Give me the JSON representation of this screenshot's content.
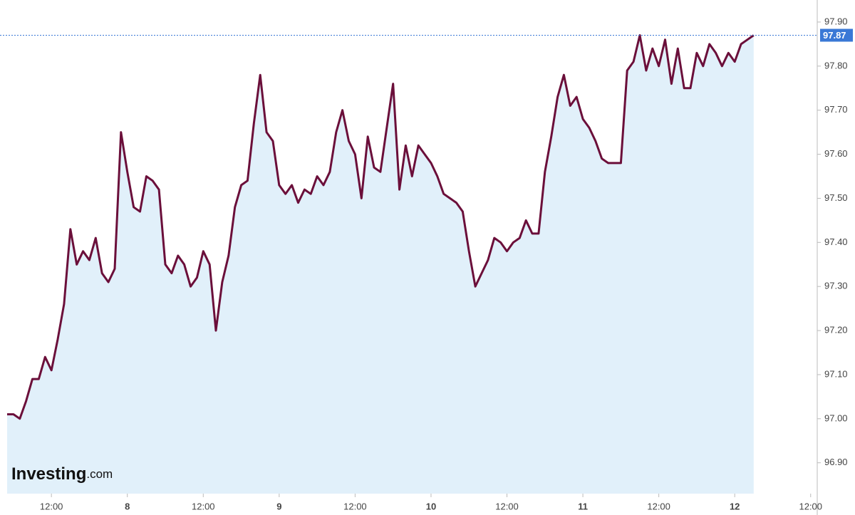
{
  "chart_data": {
    "type": "area",
    "categories": [
      null,
      null,
      null,
      null,
      null,
      null,
      null,
      "12:00",
      null,
      null,
      null,
      null,
      null,
      null,
      null,
      null,
      null,
      null,
      null,
      "8",
      null,
      null,
      null,
      null,
      null,
      null,
      null,
      null,
      null,
      null,
      null,
      "12:00",
      null,
      null,
      null,
      null,
      null,
      null,
      null,
      null,
      null,
      null,
      null,
      "9",
      null,
      null,
      null,
      null,
      null,
      null,
      null,
      null,
      null,
      null,
      null,
      "12:00",
      null,
      null,
      null,
      null,
      null,
      null,
      null,
      null,
      null,
      null,
      null,
      "10",
      null,
      null,
      null,
      null,
      null,
      null,
      null,
      null,
      null,
      null,
      null,
      "12:00",
      null,
      null,
      null,
      null,
      null,
      null,
      null,
      null,
      null,
      null,
      null,
      "11",
      null,
      null,
      null,
      null,
      null,
      null,
      null,
      null,
      null,
      null,
      null,
      "12:00",
      null,
      null,
      null,
      null,
      null,
      null,
      null,
      null,
      null,
      null,
      null,
      "12",
      null,
      null,
      null,
      null,
      null,
      null,
      null,
      null,
      null,
      null,
      null,
      "12:00"
    ],
    "values": [
      97.01,
      97.01,
      97.0,
      97.04,
      97.09,
      97.09,
      97.14,
      97.11,
      97.18,
      97.26,
      97.43,
      97.35,
      97.38,
      97.36,
      97.41,
      97.33,
      97.31,
      97.34,
      97.65,
      97.56,
      97.48,
      97.47,
      97.55,
      97.54,
      97.52,
      97.35,
      97.33,
      97.37,
      97.35,
      97.3,
      97.32,
      97.38,
      97.35,
      97.2,
      97.31,
      97.37,
      97.48,
      97.53,
      97.54,
      97.67,
      97.78,
      97.65,
      97.63,
      97.53,
      97.51,
      97.53,
      97.49,
      97.52,
      97.51,
      97.55,
      97.53,
      97.56,
      97.65,
      97.7,
      97.63,
      97.6,
      97.5,
      97.64,
      97.57,
      97.56,
      97.66,
      97.76,
      97.52,
      97.62,
      97.55,
      97.62,
      97.6,
      97.58,
      97.55,
      97.51,
      97.5,
      97.49,
      97.47,
      97.38,
      97.3,
      97.33,
      97.36,
      97.41,
      97.4,
      97.38,
      97.4,
      97.41,
      97.45,
      97.42,
      97.42,
      97.56,
      97.64,
      97.73,
      97.78,
      97.71,
      97.73,
      97.68,
      97.66,
      97.63,
      97.59,
      97.58,
      97.58,
      97.58,
      97.79,
      97.81,
      97.87,
      97.79,
      97.84,
      97.8,
      97.86,
      97.76,
      97.84,
      97.75,
      97.75,
      97.83,
      97.8,
      97.85,
      97.83,
      97.8,
      97.83,
      97.81,
      97.85,
      97.86,
      97.87,
      null,
      null,
      null,
      null,
      null,
      null,
      null,
      null,
      null
    ],
    "line_color": "#6b0f3a",
    "fill_color": "#e1f0fa",
    "last_value_color": "#3a78d6",
    "ylim": [
      96.83,
      97.95
    ],
    "yticks": [
      {
        "value": 96.9,
        "label": "96.90"
      },
      {
        "value": 97.0,
        "label": "97.00"
      },
      {
        "value": 97.1,
        "label": "97.10"
      },
      {
        "value": 97.2,
        "label": "97.20"
      },
      {
        "value": 97.3,
        "label": "97.30"
      },
      {
        "value": 97.4,
        "label": "97.40"
      },
      {
        "value": 97.5,
        "label": "97.50"
      },
      {
        "value": 97.6,
        "label": "97.60"
      },
      {
        "value": 97.7,
        "label": "97.70"
      },
      {
        "value": 97.8,
        "label": "97.80"
      },
      {
        "value": 97.9,
        "label": "97.90"
      }
    ],
    "yaxis_side": "right",
    "grid": false,
    "watermark": {
      "brand": "Investing",
      "suffix": ".com"
    }
  }
}
